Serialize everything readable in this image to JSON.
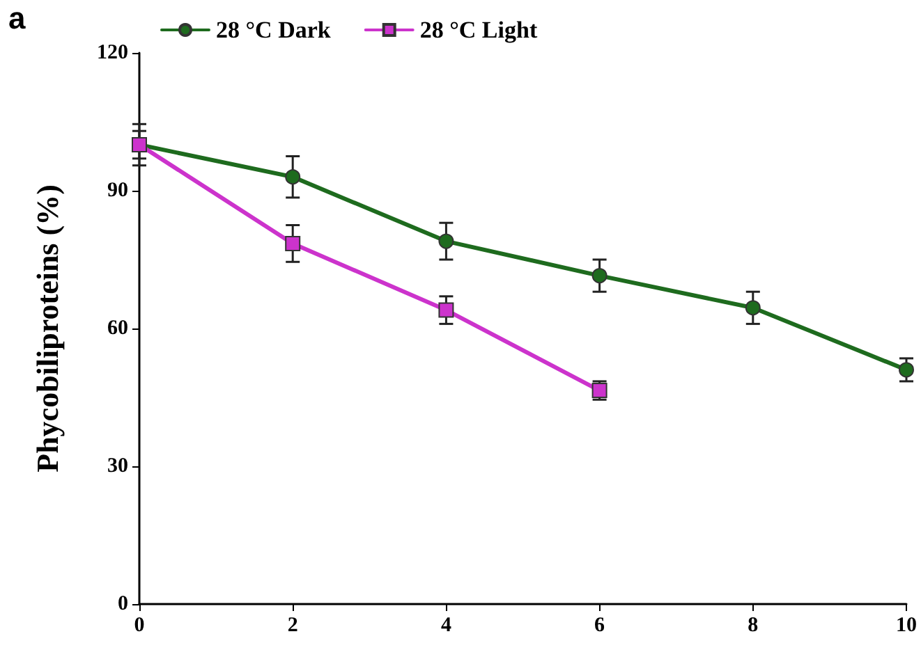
{
  "chart_data": {
    "type": "line",
    "ylabel": "Phycobiliproteins (%)",
    "annotations": [
      "a"
    ],
    "x": [
      0,
      2,
      4,
      6,
      8,
      10
    ],
    "series": [
      {
        "name": "28 °C Dark",
        "color": "#1e6b1e",
        "marker": "circle",
        "values": [
          100,
          93,
          79,
          71.5,
          64.5,
          51
        ],
        "errors": [
          4.5,
          4.5,
          4,
          3.5,
          3.5,
          2.5
        ]
      },
      {
        "name": "28 °C Light",
        "color": "#cc33cc",
        "marker": "square",
        "x": [
          0,
          2,
          4,
          6
        ],
        "values": [
          100,
          78.5,
          64,
          46.5
        ],
        "errors": [
          3,
          4,
          3,
          2
        ]
      }
    ],
    "xlim": [
      0,
      10
    ],
    "xticks": [
      0,
      2,
      4,
      6,
      8,
      10
    ],
    "ylim": [
      0,
      120
    ],
    "yticks": [
      0,
      30,
      60,
      90,
      120
    ],
    "grid": false,
    "legend": "top left",
    "line_style": "solid"
  }
}
